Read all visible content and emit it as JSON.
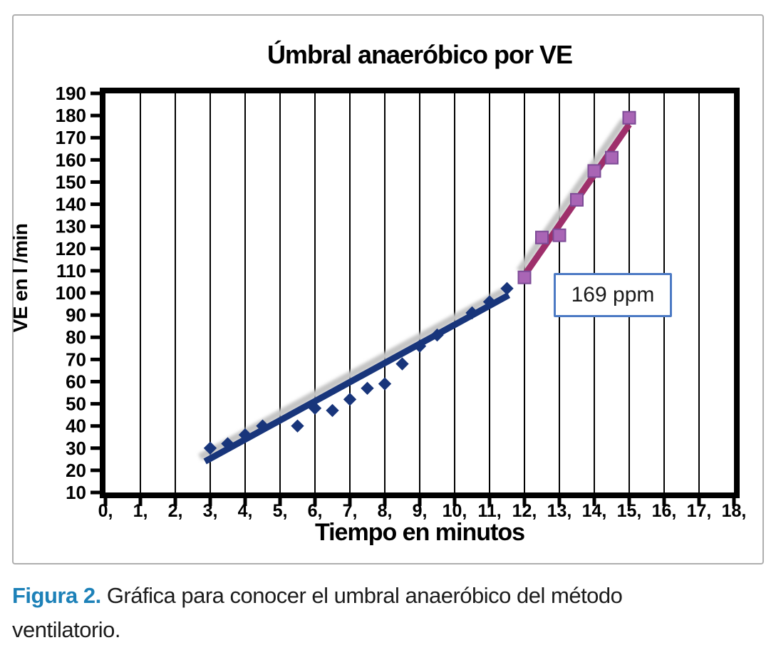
{
  "figure": {
    "title": "Úmbral anaeróbico por VE",
    "x_axis_title": "Tiempo en minutos",
    "y_axis_title": "VE en l /min",
    "annotation_label": "169 ppm"
  },
  "caption": {
    "label": "Figura 2.",
    "text": " Gráfica para conocer el umbral anaeróbico del método ventilatorio."
  },
  "colors": {
    "series_blue": "#18357b",
    "trend_blue": "#18357b",
    "series_pink_fill": "#a965b5",
    "series_pink_edge": "#7d4b96",
    "trend_pink": "#9e2f6b",
    "trend_shadow": "#c4c4c4",
    "annotation_border": "#4c7ac4",
    "caption_accent": "#1d81b8",
    "frame": "#000000",
    "outer_border": "#aeaeae"
  },
  "chart_data": {
    "type": "scatter",
    "title": "Úmbral anaeróbico por VE",
    "xlabel": "Tiempo en minutos",
    "ylabel": "VE en l /min",
    "xlim": [
      0,
      18
    ],
    "ylim": [
      10,
      190
    ],
    "x_tick_labels": [
      "0,",
      "1,",
      "2,",
      "3,",
      "4,",
      "5,",
      "6,",
      "7,",
      "8,",
      "9,",
      "10,",
      "11,",
      "12,",
      "13,",
      "14,",
      "15,",
      "16,",
      "17,",
      "18,"
    ],
    "y_ticks": [
      10,
      20,
      30,
      40,
      50,
      60,
      70,
      80,
      90,
      100,
      110,
      120,
      130,
      140,
      150,
      160,
      170,
      180,
      190
    ],
    "grid": "vertical-only",
    "legend": "none",
    "annotation": {
      "text": "169 ppm",
      "x": 12.9,
      "y": 116
    },
    "series": [
      {
        "id": "serie-ve-sub-umbral",
        "marker": "diamond",
        "color": "#18357b",
        "points": [
          [
            3,
            30
          ],
          [
            3.5,
            32
          ],
          [
            4,
            36
          ],
          [
            4.5,
            40
          ],
          [
            5.5,
            40
          ],
          [
            6,
            48
          ],
          [
            6.5,
            47
          ],
          [
            7,
            52
          ],
          [
            7.5,
            57
          ],
          [
            8,
            59
          ],
          [
            8.5,
            68
          ],
          [
            9,
            76
          ],
          [
            9.5,
            81
          ],
          [
            10.5,
            91
          ],
          [
            11,
            96
          ],
          [
            11.5,
            102
          ]
        ]
      },
      {
        "id": "serie-ve-supra-umbral",
        "marker": "square",
        "color": "#a965b5",
        "edge_color": "#7d4b96",
        "points": [
          [
            12,
            107
          ],
          [
            12.5,
            125
          ],
          [
            13,
            126
          ],
          [
            13.5,
            142
          ],
          [
            14,
            155
          ],
          [
            14.5,
            161
          ],
          [
            15,
            179
          ]
        ]
      }
    ],
    "trendlines": [
      {
        "series": "serie-ve-sub-umbral",
        "color": "#18357b",
        "from": [
          2.85,
          24
        ],
        "to": [
          11.55,
          99
        ]
      },
      {
        "series": "serie-ve-supra-umbral",
        "color": "#9e2f6b",
        "from": [
          12.0,
          108
        ],
        "to": [
          15.0,
          176
        ]
      }
    ]
  }
}
